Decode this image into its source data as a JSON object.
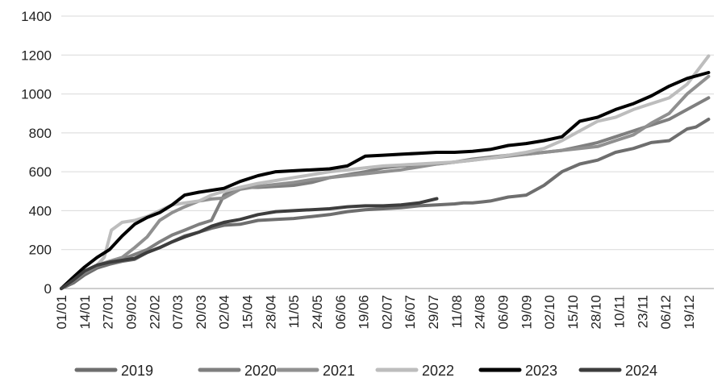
{
  "chart_data": {
    "type": "line",
    "title": "",
    "xlabel": "",
    "ylabel": "",
    "ylim": [
      0,
      1400
    ],
    "yticks": [
      0,
      200,
      400,
      600,
      800,
      1000,
      1200,
      1400
    ],
    "x_tick_labels": [
      "01/01",
      "14/01",
      "27/01",
      "09/02",
      "22/02",
      "07/03",
      "20/03",
      "02/04",
      "15/04",
      "28/04",
      "11/05",
      "24/05",
      "06/06",
      "19/06",
      "02/07",
      "16/07",
      "29/07",
      "11/08",
      "24/08",
      "06/09",
      "19/09",
      "02/10",
      "15/10",
      "28/10",
      "10/11",
      "23/11",
      "06/12",
      "19/12"
    ],
    "x_domain_days": [
      0,
      365
    ],
    "grid": "horizontal",
    "legend_position": "bottom",
    "colors": {
      "2019": "#6e6e6e",
      "2020": "#7f7f7f",
      "2021": "#909090",
      "2022": "#bdbdbd",
      "2023": "#000000",
      "2024": "#3d3d3d"
    },
    "series": [
      {
        "name": "2019",
        "x": [
          0,
          7,
          13,
          20,
          27,
          34,
          41,
          48,
          55,
          62,
          69,
          77,
          84,
          91,
          100,
          110,
          120,
          130,
          140,
          150,
          160,
          170,
          180,
          190,
          200,
          210,
          220,
          225,
          230,
          235,
          240,
          250,
          260,
          270,
          280,
          290,
          300,
          310,
          320,
          330,
          340,
          350,
          355,
          362
        ],
        "values": [
          0,
          30,
          70,
          105,
          125,
          140,
          150,
          185,
          210,
          240,
          270,
          290,
          310,
          325,
          330,
          350,
          355,
          360,
          370,
          380,
          395,
          405,
          410,
          415,
          425,
          430,
          435,
          440,
          440,
          445,
          450,
          470,
          480,
          530,
          600,
          640,
          660,
          700,
          720,
          750,
          760,
          820,
          830,
          870
        ]
      },
      {
        "name": "2020",
        "x": [
          0,
          7,
          13,
          20,
          27,
          34,
          41,
          48,
          55,
          62,
          69,
          77,
          84,
          91,
          100,
          110,
          120,
          130,
          140,
          150,
          160,
          170,
          180,
          190,
          200,
          210,
          220,
          230,
          240,
          250,
          260,
          270,
          280,
          290,
          300,
          310,
          320,
          330,
          340,
          350,
          362
        ],
        "values": [
          0,
          40,
          80,
          115,
          135,
          150,
          175,
          200,
          240,
          275,
          300,
          330,
          350,
          480,
          520,
          520,
          525,
          530,
          545,
          570,
          585,
          600,
          620,
          630,
          635,
          640,
          650,
          665,
          675,
          685,
          690,
          700,
          710,
          730,
          750,
          780,
          810,
          840,
          870,
          920,
          980
        ]
      },
      {
        "name": "2021",
        "x": [
          0,
          7,
          13,
          20,
          27,
          34,
          41,
          48,
          55,
          62,
          69,
          77,
          84,
          91,
          100,
          110,
          120,
          130,
          140,
          150,
          160,
          170,
          180,
          190,
          200,
          210,
          220,
          230,
          240,
          250,
          260,
          270,
          280,
          290,
          300,
          310,
          320,
          330,
          340,
          350,
          362
        ],
        "values": [
          0,
          50,
          90,
          120,
          140,
          160,
          210,
          265,
          350,
          390,
          420,
          450,
          460,
          465,
          510,
          525,
          535,
          545,
          560,
          570,
          580,
          590,
          600,
          610,
          625,
          640,
          650,
          660,
          670,
          680,
          690,
          700,
          710,
          720,
          730,
          760,
          790,
          850,
          900,
          1000,
          1090
        ]
      },
      {
        "name": "2022",
        "x": [
          0,
          7,
          13,
          20,
          24,
          28,
          34,
          41,
          48,
          55,
          62,
          69,
          77,
          84,
          91,
          100,
          110,
          120,
          130,
          140,
          150,
          160,
          170,
          180,
          190,
          200,
          210,
          220,
          230,
          240,
          250,
          260,
          270,
          280,
          290,
          300,
          310,
          320,
          330,
          340,
          350,
          362
        ],
        "values": [
          0,
          50,
          90,
          120,
          160,
          300,
          340,
          350,
          370,
          400,
          430,
          440,
          450,
          480,
          500,
          520,
          540,
          555,
          570,
          585,
          600,
          610,
          620,
          630,
          635,
          640,
          645,
          650,
          660,
          670,
          685,
          700,
          720,
          760,
          810,
          860,
          880,
          920,
          950,
          980,
          1050,
          1195
        ]
      },
      {
        "name": "2023",
        "x": [
          0,
          7,
          13,
          20,
          27,
          34,
          41,
          48,
          55,
          62,
          69,
          77,
          84,
          91,
          100,
          110,
          120,
          130,
          140,
          150,
          160,
          170,
          180,
          190,
          200,
          210,
          220,
          230,
          240,
          250,
          260,
          270,
          280,
          290,
          300,
          310,
          320,
          330,
          340,
          350,
          362
        ],
        "values": [
          0,
          60,
          110,
          160,
          200,
          270,
          330,
          365,
          390,
          430,
          480,
          495,
          505,
          515,
          550,
          580,
          600,
          605,
          610,
          615,
          630,
          680,
          685,
          690,
          695,
          700,
          700,
          705,
          715,
          735,
          745,
          760,
          780,
          860,
          880,
          920,
          950,
          990,
          1040,
          1080,
          1110
        ]
      },
      {
        "name": "2024",
        "x": [
          0,
          7,
          13,
          20,
          27,
          34,
          41,
          48,
          55,
          62,
          69,
          77,
          84,
          91,
          100,
          110,
          120,
          130,
          140,
          150,
          160,
          170,
          180,
          190,
          200,
          210
        ],
        "values": [
          0,
          45,
          90,
          120,
          135,
          145,
          155,
          185,
          210,
          240,
          265,
          290,
          320,
          340,
          355,
          380,
          395,
          400,
          405,
          410,
          420,
          425,
          425,
          430,
          440,
          462
        ]
      }
    ]
  }
}
